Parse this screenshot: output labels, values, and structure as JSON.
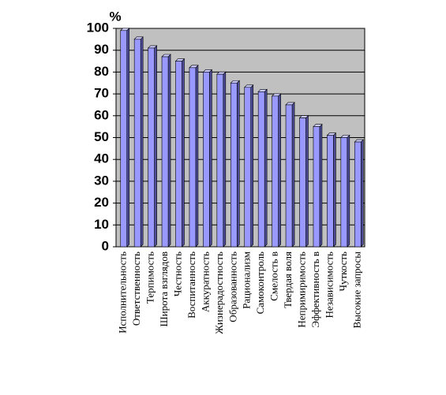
{
  "chart_data": {
    "type": "bar",
    "y_label": "%",
    "categories": [
      "Исполнительность",
      "Ответственность",
      "Терпимость",
      "Широта взглядов",
      "Честность",
      "Воспитанность",
      "Аккуратность",
      "Жизнерадостность",
      "Образованность",
      "Рационализм",
      "Самоконтроль",
      "Смелость в",
      "Твердая воля",
      "Непримиримость",
      "Эффективность в",
      "Независимость",
      "Чуткость",
      "Высокие запросы"
    ],
    "values": [
      99,
      95,
      91,
      87,
      85,
      82,
      80,
      79,
      75,
      73,
      71,
      69,
      65,
      59,
      55,
      51,
      50,
      48
    ],
    "color": "#9999ff",
    "ylim": [
      0,
      100
    ],
    "yticks": [
      0,
      10,
      20,
      30,
      40,
      50,
      60,
      70,
      80,
      90,
      100
    ],
    "grid": true
  }
}
